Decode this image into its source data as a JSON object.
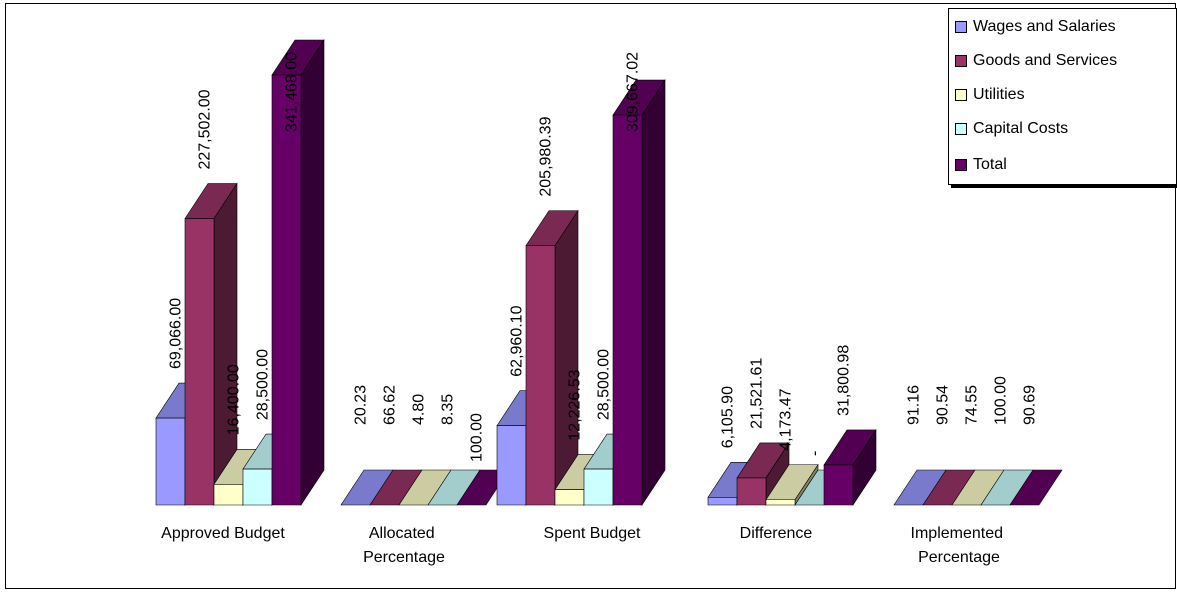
{
  "chart_data": {
    "type": "bar",
    "subtype": "3d-clustered-column",
    "categories": [
      "Approved Budget",
      "Allocated Percentage",
      "Spent Budget",
      "Difference",
      "Implemented Percentage"
    ],
    "series": [
      {
        "name": "Wages and Salaries",
        "color": "#9999FF",
        "values": [
          69066.0,
          20.23,
          62960.1,
          6105.9,
          91.16
        ],
        "labels": [
          "69,066.00",
          "20.23",
          "62,960.10",
          "6,105.90",
          "91.16"
        ]
      },
      {
        "name": "Goods and Services",
        "color": "#993366",
        "values": [
          227502.0,
          66.62,
          205980.39,
          21521.61,
          90.54
        ],
        "labels": [
          "227,502.00",
          "66.62",
          "205,980.39",
          "21,521.61",
          "90.54"
        ]
      },
      {
        "name": "Utilities",
        "color": "#FFFFCC",
        "values": [
          16400.0,
          4.8,
          12226.53,
          4173.47,
          74.55
        ],
        "labels": [
          "16,400.00",
          "4.80",
          "12,226.53",
          "4,173.47",
          "74.55"
        ]
      },
      {
        "name": "Capital Costs",
        "color": "#CCFFFF",
        "values": [
          28500.0,
          8.35,
          28500.0,
          0,
          100.0
        ],
        "labels": [
          "28,500.00",
          "8.35",
          "28,500.00",
          "-",
          "100.00"
        ]
      },
      {
        "name": "Total",
        "color": "#660066",
        "values": [
          341468.0,
          100.0,
          309667.02,
          31800.98,
          90.69
        ],
        "labels": [
          "341,468.00",
          "100.00",
          "309,667.02",
          "31,800.98",
          "90.69"
        ]
      }
    ],
    "legend_position": "top-right",
    "grid": false
  }
}
